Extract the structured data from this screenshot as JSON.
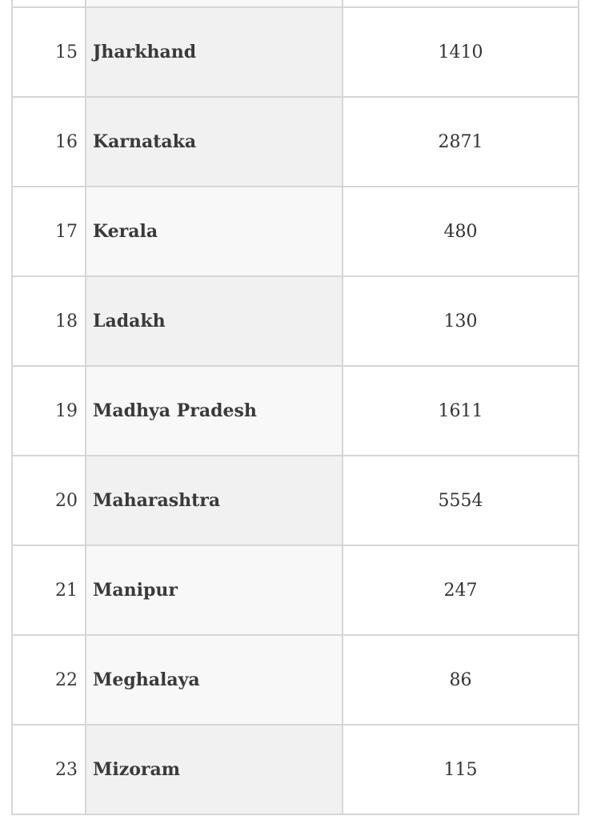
{
  "table": {
    "rows": [
      {
        "num": "",
        "name": "",
        "value": ""
      },
      {
        "num": "15",
        "name": "Jharkhand",
        "value": "1410"
      },
      {
        "num": "16",
        "name": "Karnataka",
        "value": "2871"
      },
      {
        "num": "17",
        "name": "Kerala",
        "value": "480"
      },
      {
        "num": "18",
        "name": "Ladakh",
        "value": "130"
      },
      {
        "num": "19",
        "name": "Madhya Pradesh",
        "value": "1611"
      },
      {
        "num": "20",
        "name": "Maharashtra",
        "value": "5554"
      },
      {
        "num": "21",
        "name": "Manipur",
        "value": "247"
      },
      {
        "num": "22",
        "name": "Meghalaya",
        "value": "86"
      },
      {
        "num": "23",
        "name": "Mizoram",
        "value": "115"
      }
    ]
  }
}
